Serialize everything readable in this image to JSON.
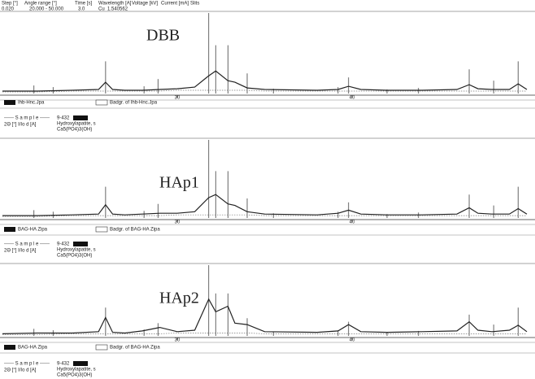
{
  "header": {
    "labels": [
      "Step [°]",
      "Angle range [°]",
      "Time [s]",
      "Wavelength [A]",
      "Voltage [kV]",
      "Current [mA]",
      "Slits"
    ],
    "values": [
      "0.020",
      "20.000 -  50.000",
      "3.0",
      "Cu",
      "1.540562"
    ]
  },
  "chart_data": [
    {
      "type": "line",
      "title": "DBB",
      "xlim": [
        20,
        50
      ],
      "xticks": [
        30,
        40
      ],
      "ylim": [
        0,
        100
      ],
      "x": [
        20,
        22,
        24,
        25.5,
        25.9,
        26.3,
        27,
        28,
        29,
        30,
        31,
        31.8,
        32.2,
        32.9,
        33.3,
        34,
        35,
        38,
        39.2,
        39.8,
        40.5,
        42,
        44,
        46,
        46.7,
        47.2,
        48,
        49,
        49.5,
        50
      ],
      "series": [
        {
          "name": "Ihb-Hnc.Jpa",
          "color": "#222222",
          "values": [
            3,
            3,
            4,
            5,
            14,
            5,
            4,
            4,
            5,
            6,
            8,
            22,
            28,
            16,
            14,
            7,
            5,
            4,
            5,
            9,
            5,
            4,
            4,
            5,
            11,
            6,
            5,
            5,
            12,
            5
          ]
        },
        {
          "name": "Badgr. of Ihb-Hnc.Jpa",
          "color": "#777777",
          "values": [
            2,
            2,
            3,
            3,
            3,
            3,
            3,
            3,
            3,
            4,
            4,
            4,
            4,
            4,
            4,
            4,
            3,
            3,
            3,
            3,
            3,
            3,
            3,
            3,
            3,
            3,
            3,
            3,
            3,
            3
          ]
        }
      ],
      "reference": {
        "name": "9-432",
        "color": "#555555",
        "x": [
          21.8,
          22.9,
          25.9,
          28.1,
          28.9,
          31.8,
          32.2,
          32.9,
          34.0,
          35.5,
          39.2,
          39.8,
          42.0,
          43.8,
          46.7,
          48.1,
          49.5
        ],
        "values": [
          10,
          8,
          40,
          9,
          18,
          100,
          60,
          60,
          25,
          6,
          8,
          20,
          5,
          7,
          30,
          16,
          40
        ]
      }
    },
    {
      "type": "line",
      "title": "HAp1",
      "xlim": [
        20,
        50
      ],
      "xticks": [
        30,
        40
      ],
      "ylim": [
        0,
        100
      ],
      "x": [
        20,
        22,
        24,
        25.5,
        25.9,
        26.3,
        27,
        28,
        29,
        30,
        31,
        31.8,
        32.2,
        32.9,
        33.3,
        34,
        35,
        38,
        39.2,
        39.8,
        40.5,
        42,
        44,
        46,
        46.7,
        47.2,
        48,
        49,
        49.5,
        50
      ],
      "series": [
        {
          "name": "BAG-HA Zipa",
          "color": "#222222",
          "values": [
            3,
            3,
            4,
            5,
            17,
            5,
            4,
            5,
            6,
            6,
            8,
            26,
            30,
            18,
            16,
            8,
            5,
            4,
            6,
            10,
            5,
            4,
            4,
            5,
            13,
            6,
            5,
            5,
            12,
            5
          ]
        },
        {
          "name": "Badgr. of BAG-HA Zipa",
          "color": "#777777",
          "values": [
            2,
            2,
            3,
            3,
            3,
            3,
            3,
            3,
            3,
            4,
            4,
            4,
            4,
            4,
            4,
            4,
            3,
            3,
            3,
            3,
            3,
            3,
            3,
            3,
            3,
            3,
            3,
            3,
            3,
            3
          ]
        }
      ],
      "reference": {
        "name": "9-432",
        "color": "#555555",
        "x": [
          21.8,
          22.9,
          25.9,
          28.1,
          28.9,
          31.8,
          32.2,
          32.9,
          34.0,
          35.5,
          39.2,
          39.8,
          42.0,
          43.8,
          46.7,
          48.1,
          49.5
        ],
        "values": [
          10,
          8,
          40,
          9,
          18,
          100,
          60,
          60,
          25,
          6,
          8,
          20,
          5,
          7,
          30,
          16,
          40
        ]
      }
    },
    {
      "type": "line",
      "title": "HAp2",
      "xlim": [
        20,
        50
      ],
      "xticks": [
        30,
        40
      ],
      "ylim": [
        0,
        100
      ],
      "x": [
        20,
        22,
        24,
        25.5,
        25.9,
        26.3,
        27,
        28,
        29,
        30,
        31,
        31.8,
        32.2,
        32.9,
        33.3,
        34,
        35,
        38,
        39.2,
        39.8,
        40.5,
        42,
        44,
        46,
        46.7,
        47.2,
        48,
        49,
        49.5,
        50
      ],
      "series": [
        {
          "name": "BAG-HA Zipa",
          "color": "#222222",
          "values": [
            3,
            4,
            4,
            6,
            26,
            5,
            4,
            7,
            12,
            6,
            8,
            52,
            34,
            42,
            18,
            16,
            6,
            5,
            7,
            16,
            6,
            5,
            6,
            7,
            20,
            8,
            6,
            8,
            15,
            6
          ]
        },
        {
          "name": "Badgr. of BAG-HA Zipa",
          "color": "#777777",
          "values": [
            2,
            2,
            3,
            3,
            3,
            3,
            3,
            3,
            3,
            4,
            4,
            4,
            4,
            4,
            4,
            4,
            3,
            3,
            3,
            3,
            3,
            3,
            3,
            3,
            3,
            3,
            3,
            3,
            3,
            3
          ]
        }
      ],
      "reference": {
        "name": "9-432",
        "color": "#555555",
        "x": [
          21.8,
          22.9,
          25.9,
          28.1,
          28.9,
          31.8,
          32.2,
          32.9,
          34.0,
          35.5,
          39.2,
          39.8,
          42.0,
          43.8,
          46.7,
          48.1,
          49.5
        ],
        "values": [
          10,
          8,
          40,
          9,
          18,
          100,
          60,
          60,
          25,
          6,
          8,
          20,
          5,
          7,
          30,
          16,
          40
        ]
      }
    }
  ],
  "reference_cards": [
    {
      "heading": "------ S a m p l e ------",
      "columns": "2Θ [°]    I/Io    d [A]",
      "card": "9-432",
      "name": "Hydroxylapatite, s",
      "formula": "Ca5(PO4)3(OH)"
    },
    {
      "heading": "------ S a m p l e ------",
      "columns": "2Θ [°]    I/Io    d [A]",
      "card": "9-432",
      "name": "Hydroxylapatite, s",
      "formula": "Ca5(PO4)3(OH)"
    },
    {
      "heading": "------ S a m p l e ------",
      "columns": "2Θ [°]    I/Io    d [A]",
      "card": "9-432",
      "name": "Hydroxylapatite, s",
      "formula": "Ca5(PO4)3(OH)"
    }
  ]
}
